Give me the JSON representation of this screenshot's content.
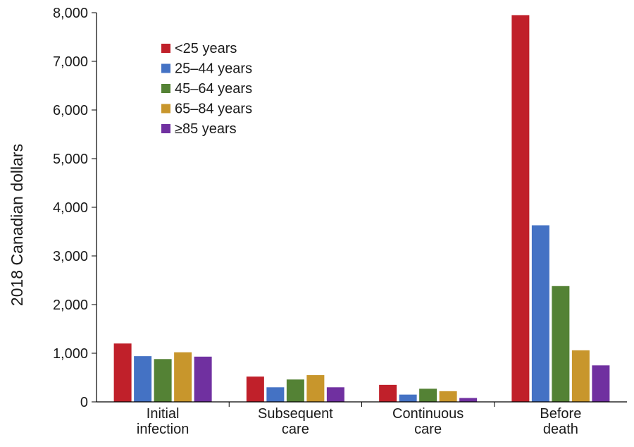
{
  "chart_data": {
    "type": "bar",
    "title": "",
    "xlabel": "",
    "ylabel": "2018 Canadian dollars",
    "ylim": [
      0,
      8000
    ],
    "yticks": [
      0,
      1000,
      2000,
      3000,
      4000,
      5000,
      6000,
      7000,
      8000
    ],
    "ytick_labels": [
      "0",
      "1,000",
      "2,000",
      "3,000",
      "4,000",
      "5,000",
      "6,000",
      "7,000",
      "8,000"
    ],
    "grid": false,
    "legend_position": "top-left",
    "categories": [
      [
        "Initial",
        "infection"
      ],
      [
        "Subsequent",
        "care"
      ],
      [
        "Continuous",
        "care"
      ],
      [
        "Before",
        "death"
      ]
    ],
    "series": [
      {
        "name": "<25 years",
        "color": "#c0202a",
        "values": [
          1200,
          520,
          350,
          7950
        ]
      },
      {
        "name": "25–44 years",
        "color": "#4472c4",
        "values": [
          940,
          300,
          150,
          3630
        ]
      },
      {
        "name": "45–64 years",
        "color": "#548235",
        "values": [
          880,
          460,
          270,
          2380
        ]
      },
      {
        "name": "65–84 years",
        "color": "#c8962c",
        "values": [
          1020,
          550,
          220,
          1060
        ]
      },
      {
        "name": "≥85 years",
        "color": "#7030a0",
        "values": [
          930,
          300,
          80,
          750
        ]
      }
    ]
  }
}
